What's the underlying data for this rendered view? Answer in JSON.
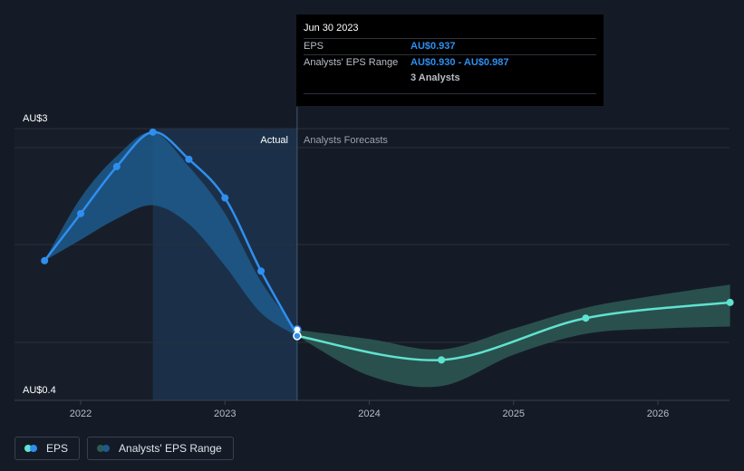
{
  "tooltip": {
    "date": "Jun 30 2023",
    "eps_label": "EPS",
    "eps_value": "AU$0.937",
    "range_label": "Analysts' EPS Range",
    "range_value": "AU$0.930 - AU$0.987",
    "analysts": "3 Analysts"
  },
  "legend": {
    "eps": "EPS",
    "range": "Analysts' EPS Range"
  },
  "colors": {
    "background": "#151b26",
    "actual": "#2f8ff0",
    "forecast": "#5fe3d0",
    "forecast_band": "#2e5955",
    "actual_band": "#1d5a8c",
    "past_shade": "#1b3048"
  },
  "chart_data": {
    "type": "line",
    "y_axis": {
      "min": 0.4,
      "max": 3,
      "tick_labels": [
        "AU$3",
        "AU$0.4"
      ]
    },
    "x_ticks": [
      "2022",
      "2023",
      "2024",
      "2025",
      "2026"
    ],
    "region_labels": {
      "actual": "Actual",
      "forecast": "Analysts Forecasts"
    },
    "series": [
      {
        "name": "EPS",
        "kind": "actual",
        "points": [
          {
            "x": 2021.75,
            "y": 1.65
          },
          {
            "x": 2022.0,
            "y": 2.1
          },
          {
            "x": 2022.25,
            "y": 2.55
          },
          {
            "x": 2022.5,
            "y": 2.88
          },
          {
            "x": 2022.75,
            "y": 2.62
          },
          {
            "x": 2023.0,
            "y": 2.25
          },
          {
            "x": 2023.25,
            "y": 1.55
          },
          {
            "x": 2023.5,
            "y": 0.937
          }
        ]
      },
      {
        "name": "EPS",
        "kind": "forecast",
        "points": [
          {
            "x": 2023.5,
            "y": 0.93
          },
          {
            "x": 2024.5,
            "y": 0.7
          },
          {
            "x": 2025.5,
            "y": 1.1
          },
          {
            "x": 2026.5,
            "y": 1.25
          }
        ]
      }
    ],
    "actual_range": [
      {
        "x": 2021.75,
        "low": 1.65,
        "high": 1.65
      },
      {
        "x": 2022.0,
        "low": 1.85,
        "high": 2.25
      },
      {
        "x": 2022.25,
        "low": 2.05,
        "high": 2.65
      },
      {
        "x": 2022.5,
        "low": 2.18,
        "high": 2.88
      },
      {
        "x": 2022.75,
        "low": 2.0,
        "high": 2.55
      },
      {
        "x": 2023.0,
        "low": 1.6,
        "high": 2.1
      },
      {
        "x": 2023.25,
        "low": 1.15,
        "high": 1.45
      },
      {
        "x": 2023.5,
        "low": 0.93,
        "high": 0.987
      }
    ],
    "forecast_range": [
      {
        "x": 2023.5,
        "low": 0.93,
        "high": 0.987
      },
      {
        "x": 2024.0,
        "low": 0.55,
        "high": 0.9
      },
      {
        "x": 2024.5,
        "low": 0.45,
        "high": 0.8
      },
      {
        "x": 2025.0,
        "low": 0.75,
        "high": 1.0
      },
      {
        "x": 2025.5,
        "low": 0.95,
        "high": 1.2
      },
      {
        "x": 2026.0,
        "low": 1.0,
        "high": 1.32
      },
      {
        "x": 2026.5,
        "low": 1.02,
        "high": 1.42
      }
    ],
    "highlight_x": 2023.5,
    "grid": true,
    "legend_position": "bottom-left"
  }
}
